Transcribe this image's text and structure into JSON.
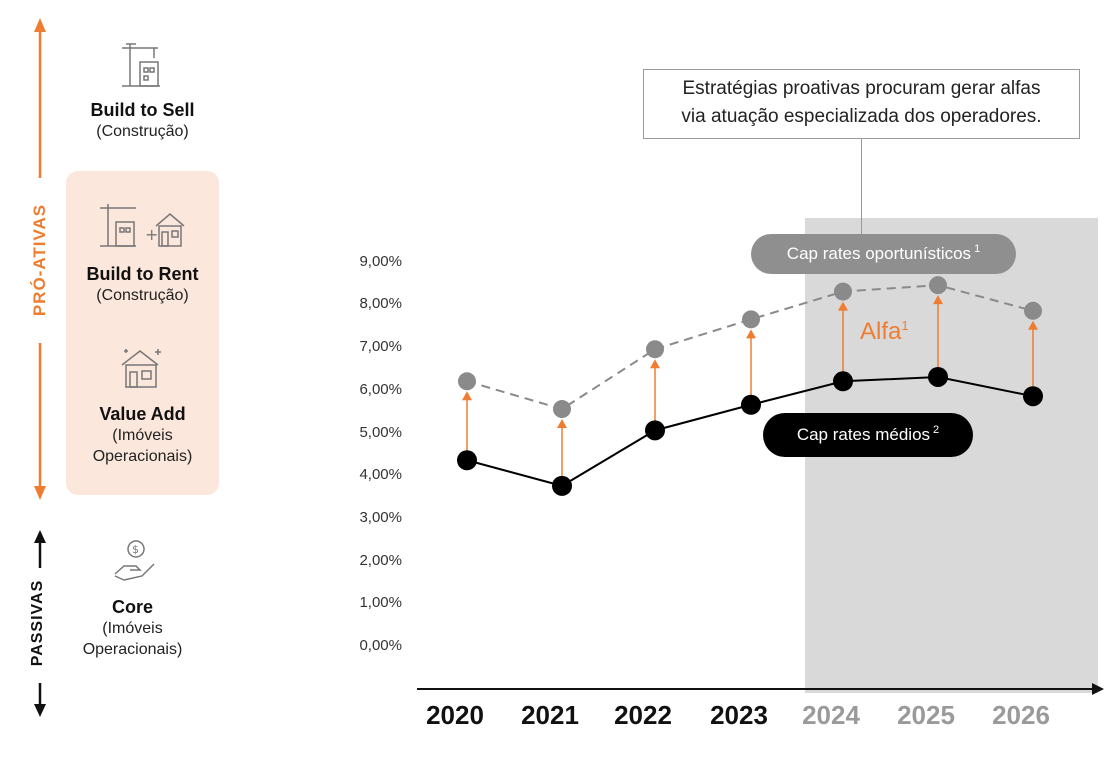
{
  "sidebar": {
    "proactive_label": "PRÓ-ATIVAS",
    "passive_label": "PASSIVAS",
    "strategies": [
      {
        "title": "Build to Sell",
        "lines": [
          "(Construção)"
        ],
        "icon": "construction-crane-icon"
      },
      {
        "title": "Build to Rent",
        "lines": [
          "(Construção)"
        ],
        "icon": "crane-plus-house-icon"
      },
      {
        "title": "Value Add",
        "lines": [
          "(Imóveis",
          "Operacionais)"
        ],
        "icon": "sparkling-house-icon"
      },
      {
        "title": "Core",
        "lines": [
          "(Imóveis",
          "Operacionais)"
        ],
        "icon": "coin-hand-icon"
      }
    ],
    "colors": {
      "accent": "#ee7d31",
      "highlight_bg": "#fbe7dc"
    }
  },
  "callout": {
    "line1": "Estratégias proativas procuram gerar alfas",
    "line2": "via atuação especializada dos operadores."
  },
  "pills": {
    "opportunistic": {
      "label": "Cap rates oportunísticos",
      "note": "1"
    },
    "average": {
      "label": "Cap rates médios",
      "note": "2"
    }
  },
  "alfa": {
    "label": "Alfa",
    "note": "1"
  },
  "chart_data": {
    "type": "line",
    "categories": [
      "2020",
      "2021",
      "2022",
      "2023",
      "2024",
      "2025",
      "2026"
    ],
    "forecast_categories": [
      "2024",
      "2025",
      "2026"
    ],
    "series": [
      {
        "name": "Cap rates oportunísticos",
        "style": "dashed",
        "color": "#8a8a8a",
        "values": [
          6.2,
          5.55,
          6.95,
          7.65,
          8.3,
          8.45,
          7.85
        ]
      },
      {
        "name": "Cap rates médios",
        "style": "solid",
        "color": "#000000",
        "values": [
          4.35,
          3.75,
          5.05,
          5.65,
          6.2,
          6.3,
          5.85
        ]
      }
    ],
    "yticks": [
      "0,00%",
      "1,00%",
      "2,00%",
      "3,00%",
      "4,00%",
      "5,00%",
      "6,00%",
      "7,00%",
      "8,00%",
      "9,00%"
    ],
    "ylim": [
      0,
      9
    ],
    "alpha_arrows": true
  }
}
